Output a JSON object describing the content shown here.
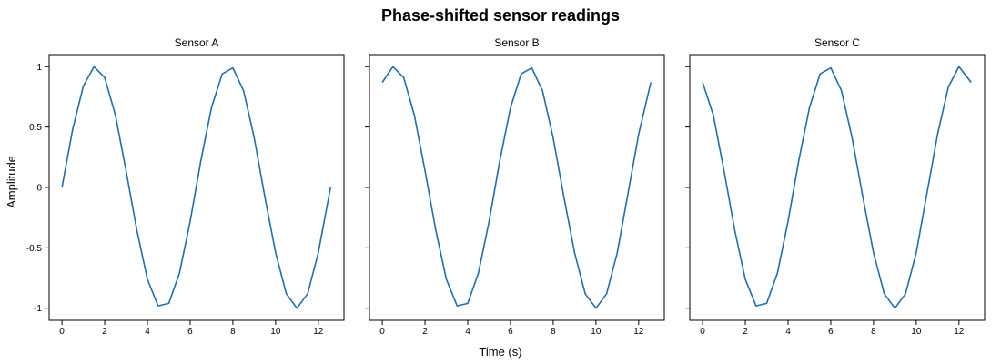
{
  "title": "Phase-shifted sensor readings",
  "xlabel": "Time (s)",
  "ylabel": "Amplitude",
  "chart_data": {
    "type": "line",
    "title": "Phase-shifted sensor readings",
    "xlabel": "Time (s)",
    "ylabel": "Amplitude",
    "xlim": [
      -0.6,
      13.2
    ],
    "ylim": [
      -1.1,
      1.1
    ],
    "x_ticks": [
      0,
      2,
      4,
      6,
      8,
      10,
      12
    ],
    "y_ticks": [
      1,
      0.5,
      0,
      -0.5,
      -1
    ],
    "y_tick_labels": [
      "1",
      "0.5",
      "0",
      "-0.5",
      "-1"
    ],
    "grid": false,
    "shared_y": true,
    "line_color": "#1f6fae",
    "panels": [
      {
        "name": "Sensor A",
        "x": [
          0.0,
          0.5,
          1.0,
          1.5,
          2.0,
          2.5,
          3.0,
          3.5,
          4.0,
          4.5,
          5.0,
          5.5,
          6.0,
          6.5,
          7.0,
          7.5,
          8.0,
          8.5,
          9.0,
          9.5,
          10.0,
          10.5,
          11.0,
          11.5,
          12.0,
          12.57
        ],
        "values": [
          0.0,
          0.48,
          0.84,
          1.0,
          0.91,
          0.6,
          0.14,
          -0.35,
          -0.76,
          -0.98,
          -0.96,
          -0.71,
          -0.28,
          0.22,
          0.66,
          0.94,
          0.99,
          0.8,
          0.41,
          -0.08,
          -0.54,
          -0.88,
          -1.0,
          -0.88,
          -0.54,
          0.0
        ]
      },
      {
        "name": "Sensor B",
        "x": [
          0.0,
          0.5,
          1.0,
          1.5,
          2.0,
          2.5,
          3.0,
          3.5,
          4.0,
          4.5,
          5.0,
          5.5,
          6.0,
          6.5,
          7.0,
          7.5,
          8.0,
          8.5,
          9.0,
          9.5,
          10.0,
          10.5,
          11.0,
          11.5,
          12.0,
          12.57
        ],
        "values": [
          0.87,
          1.0,
          0.91,
          0.6,
          0.14,
          -0.35,
          -0.76,
          -0.98,
          -0.96,
          -0.71,
          -0.28,
          0.22,
          0.66,
          0.94,
          0.99,
          0.8,
          0.41,
          -0.08,
          -0.54,
          -0.88,
          -1.0,
          -0.88,
          -0.54,
          -0.05,
          0.44,
          0.87
        ]
      },
      {
        "name": "Sensor C",
        "x": [
          0.0,
          0.5,
          1.0,
          1.5,
          2.0,
          2.5,
          3.0,
          3.5,
          4.0,
          4.5,
          5.0,
          5.5,
          6.0,
          6.5,
          7.0,
          7.5,
          8.0,
          8.5,
          9.0,
          9.5,
          10.0,
          10.5,
          11.0,
          11.5,
          12.0,
          12.57
        ],
        "values": [
          0.87,
          0.6,
          0.14,
          -0.35,
          -0.76,
          -0.98,
          -0.96,
          -0.71,
          -0.28,
          0.22,
          0.66,
          0.94,
          0.99,
          0.8,
          0.41,
          -0.08,
          -0.54,
          -0.88,
          -1.0,
          -0.88,
          -0.54,
          -0.05,
          0.44,
          0.83,
          1.0,
          0.87
        ]
      }
    ]
  }
}
